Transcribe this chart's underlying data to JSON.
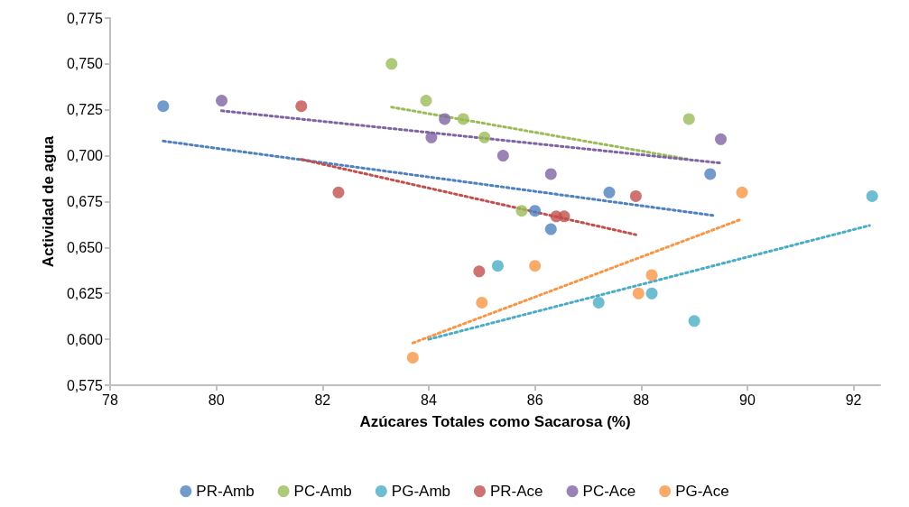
{
  "chart_data": {
    "type": "scatter",
    "xlabel": "Azúcares Totales como Sacarosa (%)",
    "ylabel": "Actividad de agua",
    "xlim": [
      78,
      92.5
    ],
    "xticks": [
      78,
      80,
      82,
      84,
      86,
      88,
      90,
      92
    ],
    "ylim": [
      0.575,
      0.775
    ],
    "yticks": [
      {
        "value": 0.575,
        "label": "0,575"
      },
      {
        "value": 0.6,
        "label": "0,600"
      },
      {
        "value": 0.625,
        "label": "0,625"
      },
      {
        "value": 0.65,
        "label": "0,650"
      },
      {
        "value": 0.675,
        "label": "0,675"
      },
      {
        "value": 0.7,
        "label": "0,700"
      },
      {
        "value": 0.725,
        "label": "0,725"
      },
      {
        "value": 0.75,
        "label": "0,750"
      },
      {
        "value": 0.775,
        "label": "0,775"
      }
    ],
    "grid": false,
    "legend": "bottom",
    "marker": "circle",
    "series": [
      {
        "name": "PR-Amb",
        "color": "#4f81bd",
        "x": [
          79.0,
          86.0,
          86.3,
          87.4,
          89.3
        ],
        "values": [
          0.727,
          0.67,
          0.66,
          0.68,
          0.69
        ]
      },
      {
        "name": "PC-Amb",
        "color": "#9bbb59",
        "x": [
          83.3,
          83.95,
          84.65,
          85.05,
          85.75,
          88.9
        ],
        "values": [
          0.75,
          0.73,
          0.72,
          0.71,
          0.67,
          0.72
        ]
      },
      {
        "name": "PG-Amb",
        "color": "#4bacc6",
        "x": [
          85.3,
          87.2,
          88.2,
          89.0,
          92.35
        ],
        "values": [
          0.64,
          0.62,
          0.625,
          0.61,
          0.678
        ]
      },
      {
        "name": "PR-Ace",
        "color": "#c0504d",
        "x": [
          81.6,
          82.3,
          84.95,
          86.4,
          86.55,
          87.9
        ],
        "values": [
          0.727,
          0.68,
          0.637,
          0.667,
          0.667,
          0.678
        ]
      },
      {
        "name": "PC-Ace",
        "color": "#8064a2",
        "x": [
          80.1,
          84.05,
          84.3,
          85.4,
          86.3,
          89.5
        ],
        "values": [
          0.73,
          0.71,
          0.72,
          0.7,
          0.69,
          0.709
        ]
      },
      {
        "name": "PG-Ace",
        "color": "#f79646",
        "x": [
          83.7,
          85.0,
          86.0,
          87.95,
          88.2,
          89.9
        ],
        "values": [
          0.59,
          0.62,
          0.64,
          0.625,
          0.635,
          0.68
        ]
      },
      {
        "type": "line",
        "color": "#4f81bd",
        "marker": "none",
        "line_style": "dotted",
        "x": [
          79.0,
          89.35
        ],
        "values": [
          0.708,
          0.6675
        ]
      },
      {
        "type": "line",
        "color": "#9bbb59",
        "marker": "none",
        "line_style": "dotted",
        "x": [
          83.3,
          88.9
        ],
        "values": [
          0.7265,
          0.698
        ]
      },
      {
        "type": "line",
        "color": "#4bacc6",
        "marker": "none",
        "line_style": "dotted",
        "x": [
          84.0,
          92.3
        ],
        "values": [
          0.6,
          0.662
        ]
      },
      {
        "type": "line",
        "color": "#c0504d",
        "marker": "none",
        "line_style": "dotted",
        "x": [
          81.6,
          87.9
        ],
        "values": [
          0.698,
          0.657
        ]
      },
      {
        "type": "line",
        "color": "#8064a2",
        "marker": "none",
        "line_style": "dotted",
        "x": [
          80.1,
          89.5
        ],
        "values": [
          0.7245,
          0.696
        ]
      },
      {
        "type": "line",
        "color": "#f79646",
        "marker": "none",
        "line_style": "dotted",
        "x": [
          83.7,
          89.85
        ],
        "values": [
          0.598,
          0.665
        ]
      }
    ]
  }
}
